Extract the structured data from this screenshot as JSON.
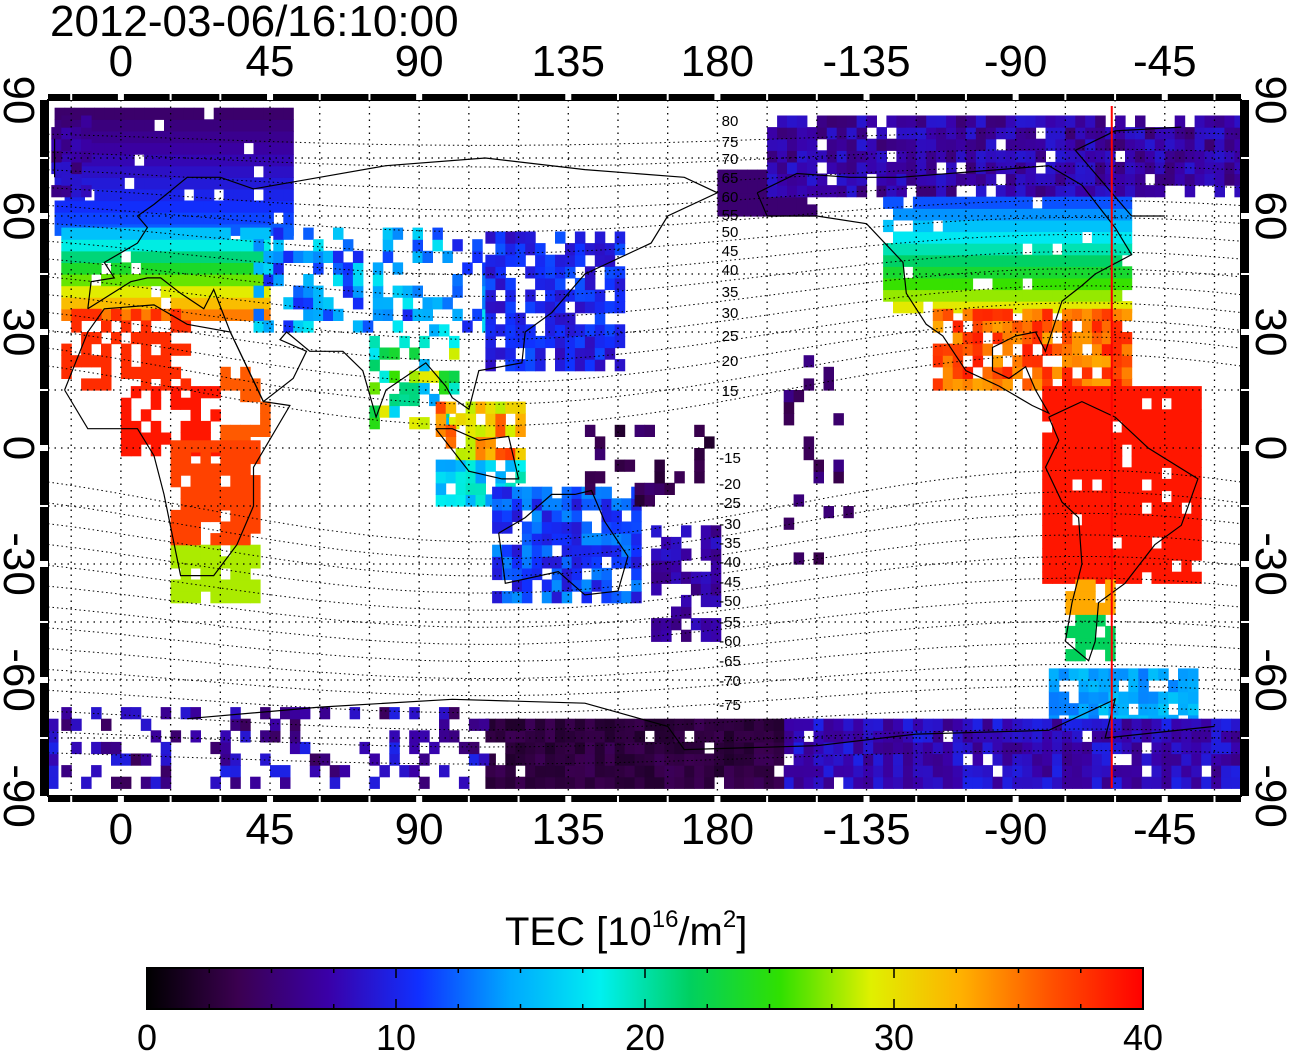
{
  "timestamp": "2012-03-06/16:10:00",
  "map": {
    "x_ticks": [
      "0",
      "45",
      "90",
      "135",
      "180",
      "-135",
      "-90",
      "-45"
    ],
    "y_ticks": [
      "90",
      "60",
      "30",
      "0",
      "-30",
      "-60",
      "-90"
    ],
    "contour_labels": [
      "80",
      "75",
      "70",
      "65",
      "60",
      "55",
      "50",
      "45",
      "40",
      "35",
      "30",
      "25",
      "20",
      "15",
      "-15",
      "-20",
      "-25",
      "-30",
      "-35",
      "-40",
      "-45",
      "-50",
      "-55",
      "-60",
      "-65",
      "-70",
      "-75"
    ],
    "red_line_longitude": -61,
    "colors": {
      "red_line": "#ff0000"
    }
  },
  "colorbar": {
    "title_main": "TEC  [10",
    "title_exp1": "16",
    "title_mid": "/m",
    "title_exp2": "2",
    "title_end": "]",
    "ticks": [
      "0",
      "10",
      "20",
      "30",
      "40"
    ],
    "range": [
      0,
      40
    ],
    "colormap": [
      "#000000",
      "#3b0050",
      "#3a00a8",
      "#1030ff",
      "#00a8ff",
      "#00f0f0",
      "#00d060",
      "#30e000",
      "#e0f000",
      "#ffb000",
      "#ff5000",
      "#ff0000"
    ]
  }
}
